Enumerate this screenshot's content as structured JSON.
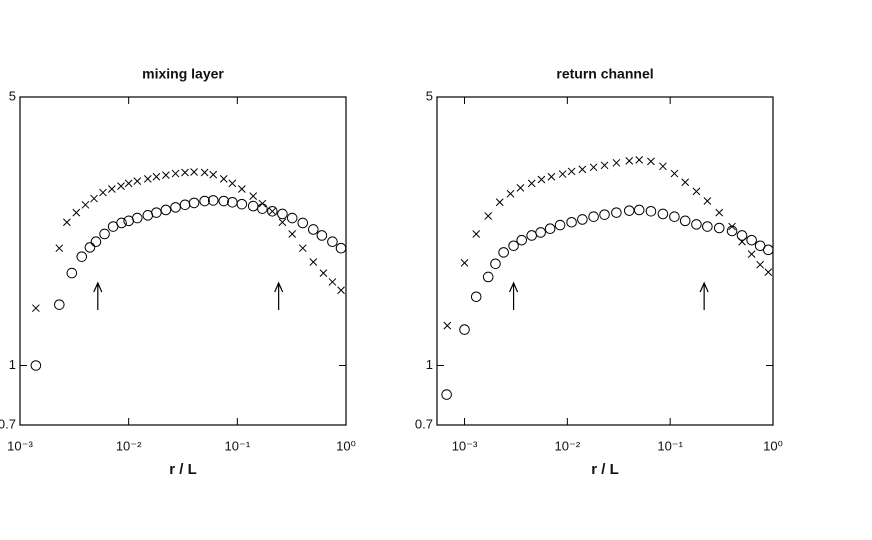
{
  "chart_data": [
    {
      "type": "scatter",
      "title": "mixing layer",
      "xlabel": "r / L",
      "xscale": "log",
      "yscale": "log",
      "xlim": [
        0.001,
        1
      ],
      "ylim": [
        0.7,
        5
      ],
      "xticks": [
        {
          "value": 0.001,
          "label": "10⁻³"
        },
        {
          "value": 0.01,
          "label": "10⁻²"
        },
        {
          "value": 0.1,
          "label": "10⁻¹"
        },
        {
          "value": 1,
          "label": "10⁰"
        }
      ],
      "yticks": [
        0.7,
        1,
        5
      ],
      "arrows_x": [
        0.0052,
        0.24
      ],
      "series": [
        {
          "marker": "circle",
          "color": "#000000",
          "x": [
            0.0014,
            0.0023,
            0.003,
            0.0037,
            0.0044,
            0.005,
            0.006,
            0.0072,
            0.0086,
            0.01,
            0.012,
            0.015,
            0.018,
            0.022,
            0.027,
            0.033,
            0.04,
            0.05,
            0.06,
            0.075,
            0.09,
            0.11,
            0.14,
            0.17,
            0.21,
            0.26,
            0.32,
            0.4,
            0.5,
            0.6,
            0.75,
            0.9
          ],
          "values": [
            1.0,
            1.44,
            1.74,
            1.92,
            2.03,
            2.1,
            2.2,
            2.3,
            2.35,
            2.38,
            2.42,
            2.46,
            2.5,
            2.54,
            2.58,
            2.62,
            2.65,
            2.68,
            2.69,
            2.68,
            2.66,
            2.63,
            2.6,
            2.56,
            2.52,
            2.48,
            2.42,
            2.35,
            2.26,
            2.18,
            2.1,
            2.02
          ]
        },
        {
          "marker": "cross",
          "color": "#000000",
          "x": [
            0.0014,
            0.0023,
            0.0027,
            0.0033,
            0.004,
            0.0048,
            0.0058,
            0.007,
            0.0085,
            0.01,
            0.012,
            0.015,
            0.018,
            0.022,
            0.027,
            0.033,
            0.04,
            0.05,
            0.06,
            0.075,
            0.09,
            0.11,
            0.14,
            0.17,
            0.21,
            0.26,
            0.32,
            0.4,
            0.5,
            0.62,
            0.75,
            0.9
          ],
          "values": [
            1.41,
            2.02,
            2.36,
            2.5,
            2.62,
            2.72,
            2.82,
            2.88,
            2.93,
            2.98,
            3.02,
            3.06,
            3.1,
            3.13,
            3.16,
            3.18,
            3.19,
            3.18,
            3.14,
            3.06,
            2.98,
            2.88,
            2.76,
            2.64,
            2.52,
            2.36,
            2.2,
            2.02,
            1.86,
            1.74,
            1.65,
            1.57
          ]
        }
      ]
    },
    {
      "type": "scatter",
      "title": "return channel",
      "xlabel": "r / L",
      "xscale": "log",
      "yscale": "log",
      "xlim": [
        0.00054,
        1
      ],
      "ylim": [
        0.7,
        5
      ],
      "xticks": [
        {
          "value": 0.001,
          "label": "10⁻³"
        },
        {
          "value": 0.01,
          "label": "10⁻²"
        },
        {
          "value": 0.1,
          "label": "10⁻¹"
        },
        {
          "value": 1,
          "label": "10⁰"
        }
      ],
      "yticks": [
        0.7,
        1,
        5
      ],
      "arrows_x": [
        0.003,
        0.214
      ],
      "series": [
        {
          "marker": "circle",
          "color": "#000000",
          "x": [
            0.00067,
            0.001,
            0.0013,
            0.0017,
            0.002,
            0.0024,
            0.003,
            0.0036,
            0.0045,
            0.0055,
            0.0068,
            0.0085,
            0.011,
            0.014,
            0.018,
            0.023,
            0.03,
            0.04,
            0.05,
            0.065,
            0.085,
            0.11,
            0.14,
            0.18,
            0.23,
            0.3,
            0.4,
            0.5,
            0.62,
            0.75,
            0.9
          ],
          "values": [
            0.84,
            1.24,
            1.51,
            1.7,
            1.84,
            1.97,
            2.05,
            2.12,
            2.18,
            2.22,
            2.27,
            2.32,
            2.36,
            2.4,
            2.44,
            2.47,
            2.5,
            2.53,
            2.54,
            2.52,
            2.48,
            2.44,
            2.38,
            2.33,
            2.3,
            2.28,
            2.24,
            2.18,
            2.12,
            2.05,
            2.0
          ]
        },
        {
          "marker": "cross",
          "color": "#000000",
          "x": [
            0.00068,
            0.001,
            0.0013,
            0.0017,
            0.0022,
            0.0028,
            0.0035,
            0.0045,
            0.0056,
            0.007,
            0.009,
            0.011,
            0.014,
            0.018,
            0.023,
            0.03,
            0.04,
            0.05,
            0.065,
            0.085,
            0.11,
            0.14,
            0.18,
            0.23,
            0.3,
            0.4,
            0.5,
            0.62,
            0.75,
            0.9
          ],
          "values": [
            1.27,
            1.85,
            2.2,
            2.45,
            2.66,
            2.8,
            2.9,
            2.98,
            3.05,
            3.1,
            3.15,
            3.2,
            3.24,
            3.28,
            3.32,
            3.37,
            3.41,
            3.43,
            3.4,
            3.3,
            3.16,
            3.0,
            2.84,
            2.68,
            2.5,
            2.3,
            2.1,
            1.95,
            1.83,
            1.75
          ]
        }
      ]
    }
  ]
}
